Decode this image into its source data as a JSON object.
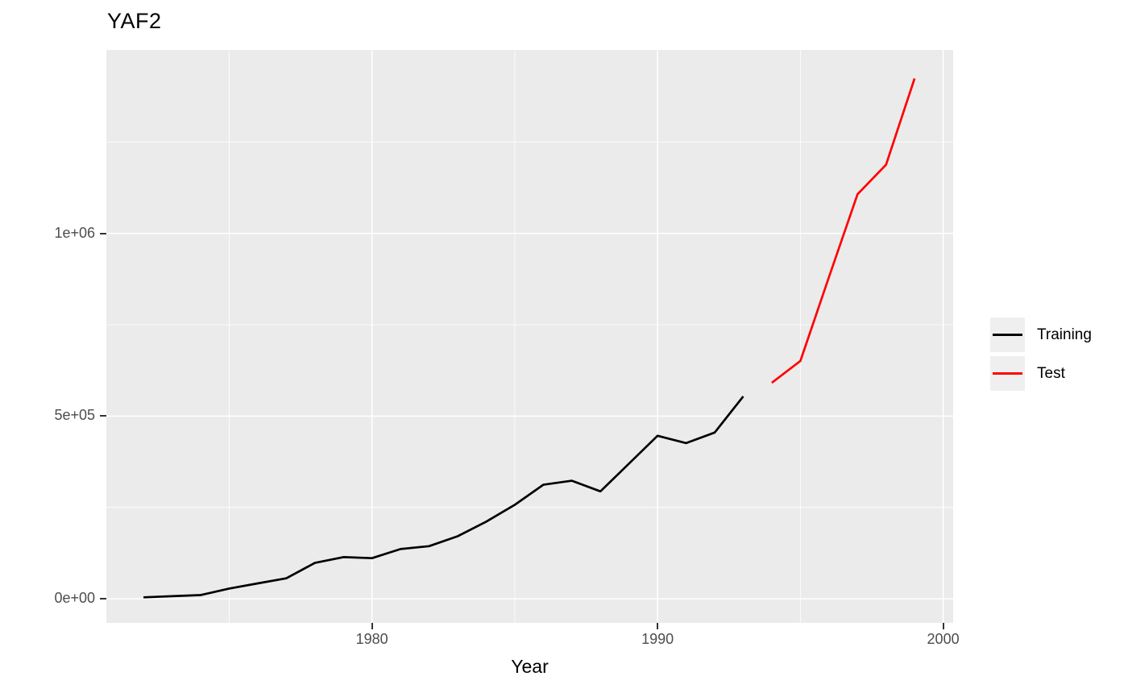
{
  "title": "YAF2",
  "axes": {
    "x": {
      "title": "Year",
      "tick_labels": [
        "1980",
        "1990",
        "2000"
      ]
    },
    "y": {
      "title": "",
      "tick_labels": [
        "0e+00",
        "5e+05",
        "1e+06"
      ]
    }
  },
  "colors": {
    "panel_bg": "#EBEBEB",
    "grid": "#FFFFFF",
    "axis_text": "#4D4D4D",
    "tick_mark": "#333333",
    "legend_key_bg": "#EFEFEF",
    "training": "#000000",
    "test": "#FF0000"
  },
  "chart_data": {
    "type": "line",
    "title": "YAF2",
    "xlabel": "Year",
    "ylabel": "",
    "xlim": [
      1970.7,
      2000.35
    ],
    "ylim": [
      -66000,
      1502000
    ],
    "grid": true,
    "legend_position": "right",
    "x_major_ticks": [
      1980,
      1990,
      2000
    ],
    "x_minor_gridlines": [
      1975,
      1985,
      1995
    ],
    "y_major_ticks": [
      0,
      500000,
      1000000
    ],
    "y_minor_gridlines": [
      250000,
      750000,
      1250000
    ],
    "series": [
      {
        "name": "Training",
        "color": "#000000",
        "x": [
          1972,
          1973,
          1974,
          1975,
          1976,
          1977,
          1978,
          1979,
          1980,
          1981,
          1982,
          1983,
          1984,
          1985,
          1986,
          1987,
          1988,
          1989,
          1990,
          1991,
          1992,
          1993
        ],
        "y": [
          4000,
          7000,
          10000,
          28000,
          42000,
          56000,
          98000,
          114000,
          111000,
          136000,
          144000,
          171000,
          211000,
          257000,
          312000,
          323000,
          294000,
          370000,
          446000,
          426000,
          455000,
          554000
        ]
      },
      {
        "name": "Test",
        "color": "#FF0000",
        "x": [
          1994,
          1995,
          1996,
          1997,
          1998,
          1999
        ],
        "y": [
          591000,
          651000,
          880000,
          1107000,
          1188000,
          1424000
        ]
      }
    ]
  }
}
